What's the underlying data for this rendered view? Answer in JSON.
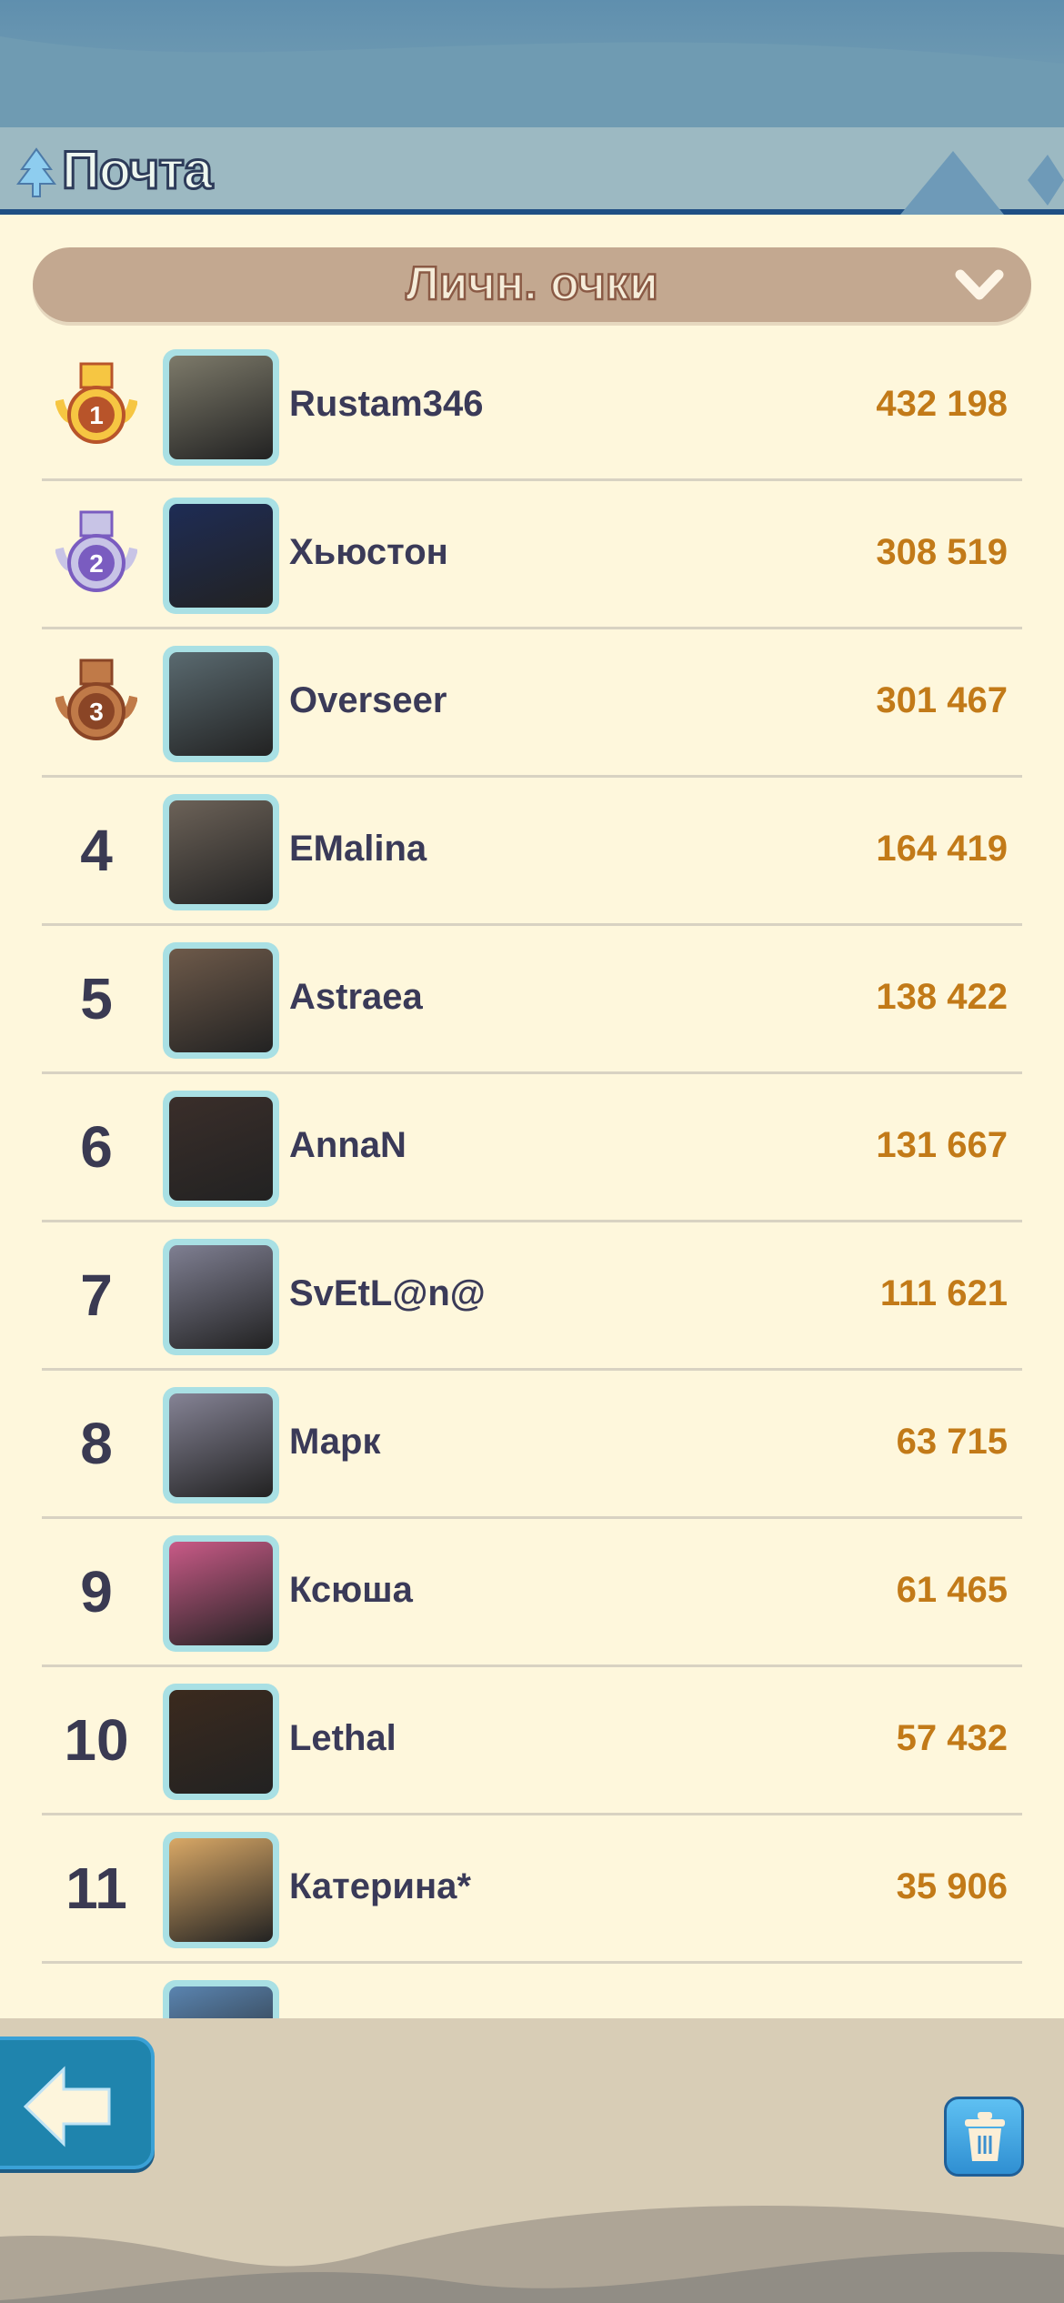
{
  "header": {
    "title": "Почта",
    "icon": "tree-icon"
  },
  "filter": {
    "selected": "Личн. очки",
    "icon": "chevron-down-icon"
  },
  "rows": [
    {
      "rank": "1",
      "medal": "gold",
      "name": "Rustam346",
      "score": "432 198",
      "avatar": "#7d7a6a"
    },
    {
      "rank": "2",
      "medal": "silver",
      "name": "Хьюстон",
      "score": "308 519",
      "avatar": "#1e2c55"
    },
    {
      "rank": "3",
      "medal": "bronze",
      "name": "Overseer",
      "score": "301 467",
      "avatar": "#5a6a70"
    },
    {
      "rank": "4",
      "name": "EMalina",
      "score": "164 419",
      "avatar": "#6c6258"
    },
    {
      "rank": "5",
      "name": "Astraea",
      "score": "138 422",
      "avatar": "#6e5a4a"
    },
    {
      "rank": "6",
      "name": "AnnaN",
      "score": "131 667",
      "avatar": "#3a2e2a"
    },
    {
      "rank": "7",
      "name": "SvEtL@n@",
      "score": "111 621",
      "avatar": "#7f7f92"
    },
    {
      "rank": "8",
      "name": "Марк",
      "score": "63 715",
      "avatar": "#858395"
    },
    {
      "rank": "9",
      "name": "Ксюша",
      "score": "61 465",
      "avatar": "#c95a87"
    },
    {
      "rank": "10",
      "name": "Lethal",
      "score": "57 432",
      "avatar": "#3b2a1e"
    },
    {
      "rank": "11",
      "name": "Катерина*",
      "score": "35 906",
      "avatar": "#d9a866"
    }
  ],
  "footer": {
    "back_icon": "arrow-left-icon",
    "trash_icon": "trash-icon"
  },
  "colors": {
    "gold": "#e8a820",
    "silver": "#9a8fc8",
    "bronze": "#b0603a",
    "score": "#c27a18",
    "accent": "#1f84ad"
  }
}
